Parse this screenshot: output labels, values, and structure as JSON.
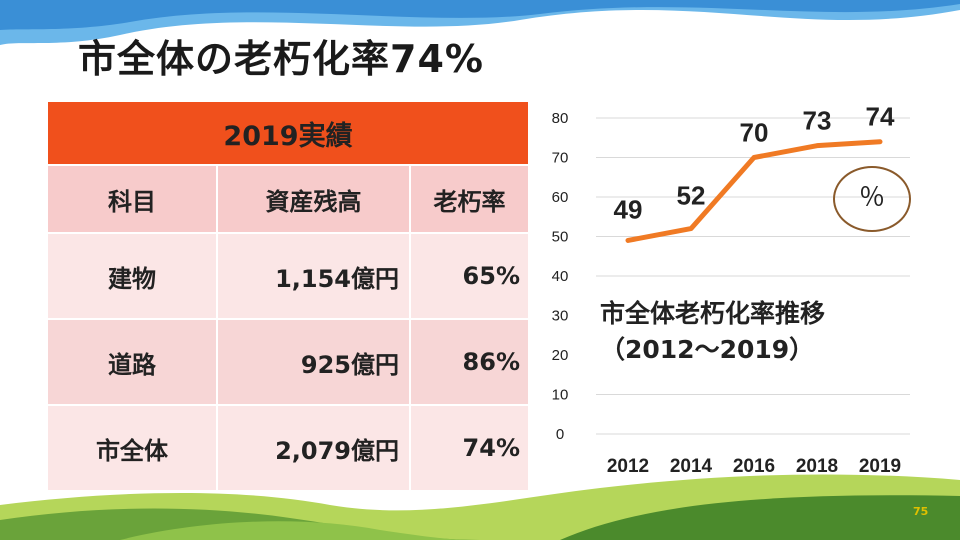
{
  "title": "市全体の老朽化率74%",
  "table": {
    "header": "2019実績",
    "columns": [
      "科目",
      "資産残高",
      "老朽率"
    ],
    "rows": [
      {
        "name": "建物",
        "value": "1,154億円",
        "rate": "65%"
      },
      {
        "name": "道路",
        "value": "925億円",
        "rate": "86%"
      },
      {
        "name": "市全体",
        "value": "2,079億円",
        "rate": "74%"
      }
    ]
  },
  "chart_title_line1": "市全体老朽化率推移",
  "chart_title_line2": "（2012～2019）",
  "unit": "％",
  "page_number": "75",
  "colors": {
    "line": "#f07a24",
    "header": "#f0501c",
    "grass_light": "#9cc93c",
    "grass_dark": "#4b8a2c",
    "sky": "#3a9be0"
  },
  "chart_data": {
    "type": "line",
    "x": [
      "2012",
      "2014",
      "2016",
      "2018",
      "2019"
    ],
    "series": [
      {
        "values": [
          49,
          52,
          70,
          73,
          74
        ]
      }
    ],
    "yticks": [
      "0",
      "10",
      "20",
      "30",
      "40",
      "50",
      "60",
      "70",
      "80"
    ],
    "ylim": [
      0,
      80
    ],
    "grid": true,
    "data_labels": [
      "49",
      "52",
      "70",
      "73",
      "74"
    ]
  }
}
